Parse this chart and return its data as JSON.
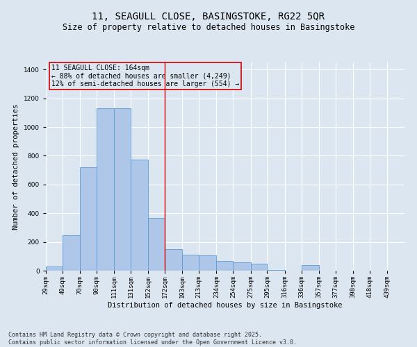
{
  "title1": "11, SEAGULL CLOSE, BASINGSTOKE, RG22 5QR",
  "title2": "Size of property relative to detached houses in Basingstoke",
  "xlabel": "Distribution of detached houses by size in Basingstoke",
  "ylabel": "Number of detached properties",
  "bin_labels": [
    "29sqm",
    "49sqm",
    "70sqm",
    "90sqm",
    "111sqm",
    "131sqm",
    "152sqm",
    "172sqm",
    "193sqm",
    "213sqm",
    "234sqm",
    "254sqm",
    "275sqm",
    "295sqm",
    "316sqm",
    "336sqm",
    "357sqm",
    "377sqm",
    "398sqm",
    "418sqm",
    "439sqm"
  ],
  "bin_edges": [
    29,
    49,
    70,
    90,
    111,
    131,
    152,
    172,
    193,
    213,
    234,
    254,
    275,
    295,
    316,
    336,
    357,
    377,
    398,
    418,
    439
  ],
  "bar_heights": [
    30,
    245,
    720,
    1130,
    1130,
    775,
    365,
    150,
    110,
    105,
    70,
    60,
    50,
    5,
    0,
    38,
    0,
    0,
    0,
    0,
    0
  ],
  "bar_color": "#aec6e8",
  "bar_edge_color": "#5b9bd5",
  "vline_x": 172,
  "vline_color": "#cc0000",
  "annotation_title": "11 SEAGULL CLOSE: 164sqm",
  "annotation_line2": "← 88% of detached houses are smaller (4,249)",
  "annotation_line3": "12% of semi-detached houses are larger (554) →",
  "annotation_box_color": "#cc0000",
  "ylim": [
    0,
    1450
  ],
  "yticks": [
    0,
    200,
    400,
    600,
    800,
    1000,
    1200,
    1400
  ],
  "bg_color": "#dce6f1",
  "plot_bg_color": "#dce6f1",
  "footer1": "Contains HM Land Registry data © Crown copyright and database right 2025.",
  "footer2": "Contains public sector information licensed under the Open Government Licence v3.0.",
  "title_fontsize": 10,
  "subtitle_fontsize": 8.5,
  "axis_label_fontsize": 7.5,
  "tick_fontsize": 6.5,
  "annotation_fontsize": 7,
  "footer_fontsize": 6
}
